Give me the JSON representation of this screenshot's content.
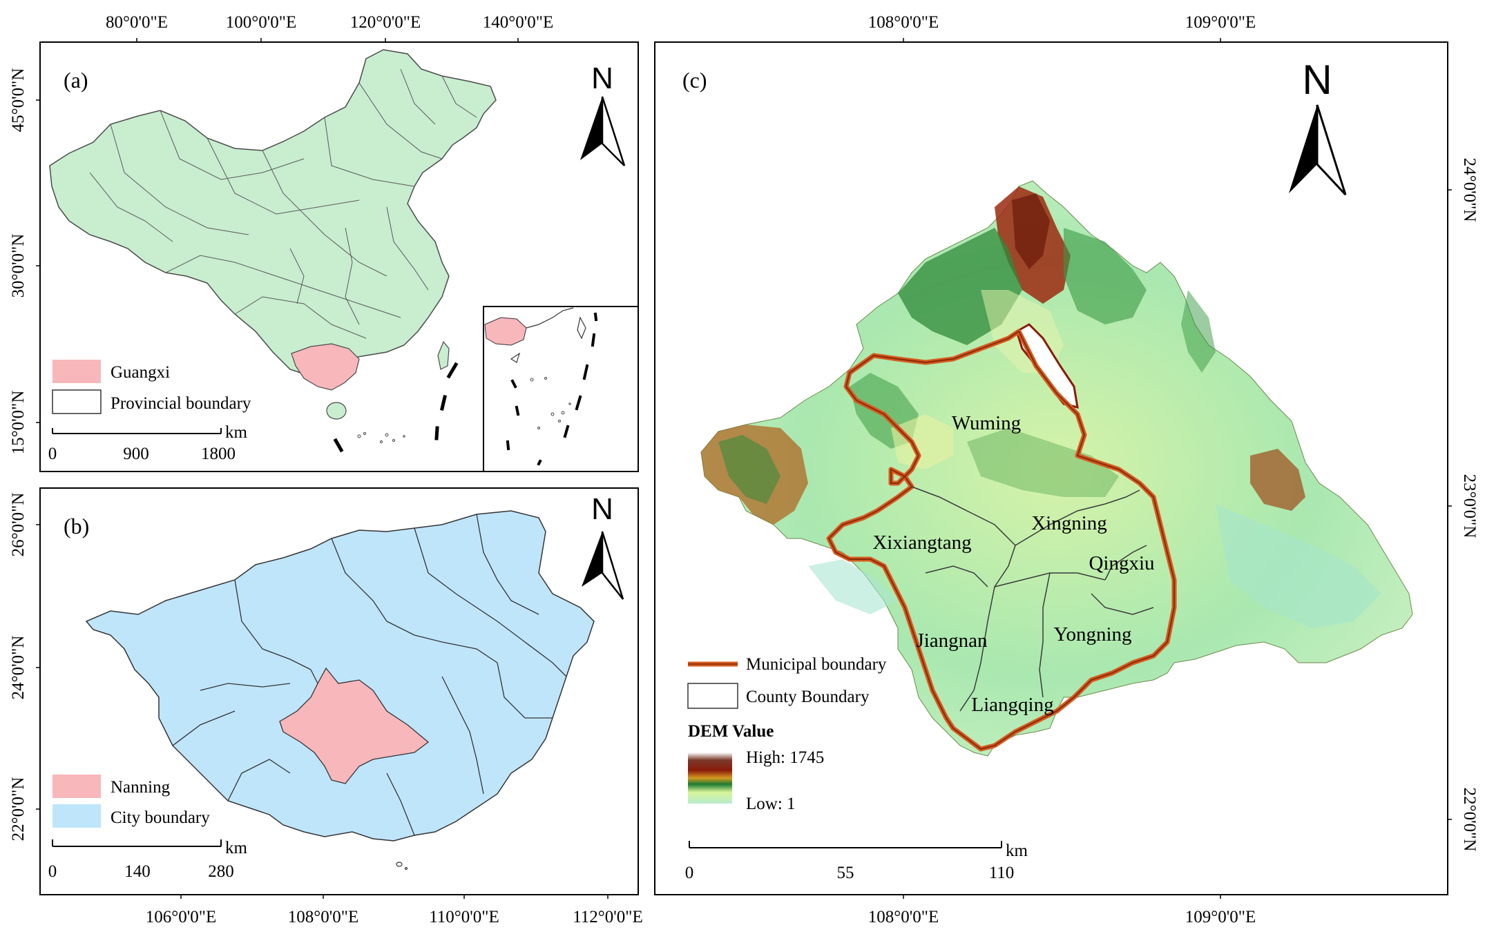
{
  "panel_a": {
    "label": "(a)",
    "top_ticks": [
      "80°0'0\"E",
      "100°0'0\"E",
      "120°0'0\"E",
      "140°0'0\"E"
    ],
    "left_ticks": [
      "45°0'0\"N",
      "30°0'0\"N",
      "15°0'0\"N"
    ],
    "north": "N",
    "legend": [
      "Guangxi",
      "Provincial boundary"
    ],
    "scale": {
      "unit": "km",
      "labels": [
        "0",
        "900",
        "1800"
      ]
    },
    "colors": {
      "land": "#c8edcf",
      "highlight": "#f7b7bb"
    }
  },
  "panel_b": {
    "label": "(b)",
    "bottom_ticks": [
      "106°0'0\"E",
      "108°0'0\"E",
      "110°0'0\"E",
      "112°0'0\"E"
    ],
    "left_ticks": [
      "26°0'0\"N",
      "24°0'0\"N",
      "22°0'0\"N"
    ],
    "north": "N",
    "legend": [
      "Nanning",
      "City boundary"
    ],
    "scale": {
      "unit": "km",
      "labels": [
        "0",
        "140",
        "280"
      ]
    },
    "colors": {
      "land": "#bfe5fb",
      "highlight": "#f7b7bb"
    }
  },
  "panel_c": {
    "label": "(c)",
    "top_ticks": [
      "108°0'0\"E",
      "109°0'0\"E"
    ],
    "bottom_ticks": [
      "108°0'0\"E",
      "109°0'0\"E"
    ],
    "right_ticks": [
      "24°0'0\"N",
      "23°0'0\"N",
      "22°0'0\"N"
    ],
    "north": "N",
    "counties": [
      "Wuming",
      "Xixiangtang",
      "Xingning",
      "Qingxiu",
      "Jiangnan",
      "Yongning",
      "Liangqing"
    ],
    "legend": {
      "municipal": "Municipal boundary",
      "county": "County Boundary",
      "dem_title": "DEM Value",
      "high": "High: 1745",
      "low": "Low: 1"
    },
    "scale": {
      "unit": "km",
      "labels": [
        "0",
        "55",
        "110"
      ]
    },
    "colors": {
      "boundary": "#d45a1e"
    }
  }
}
